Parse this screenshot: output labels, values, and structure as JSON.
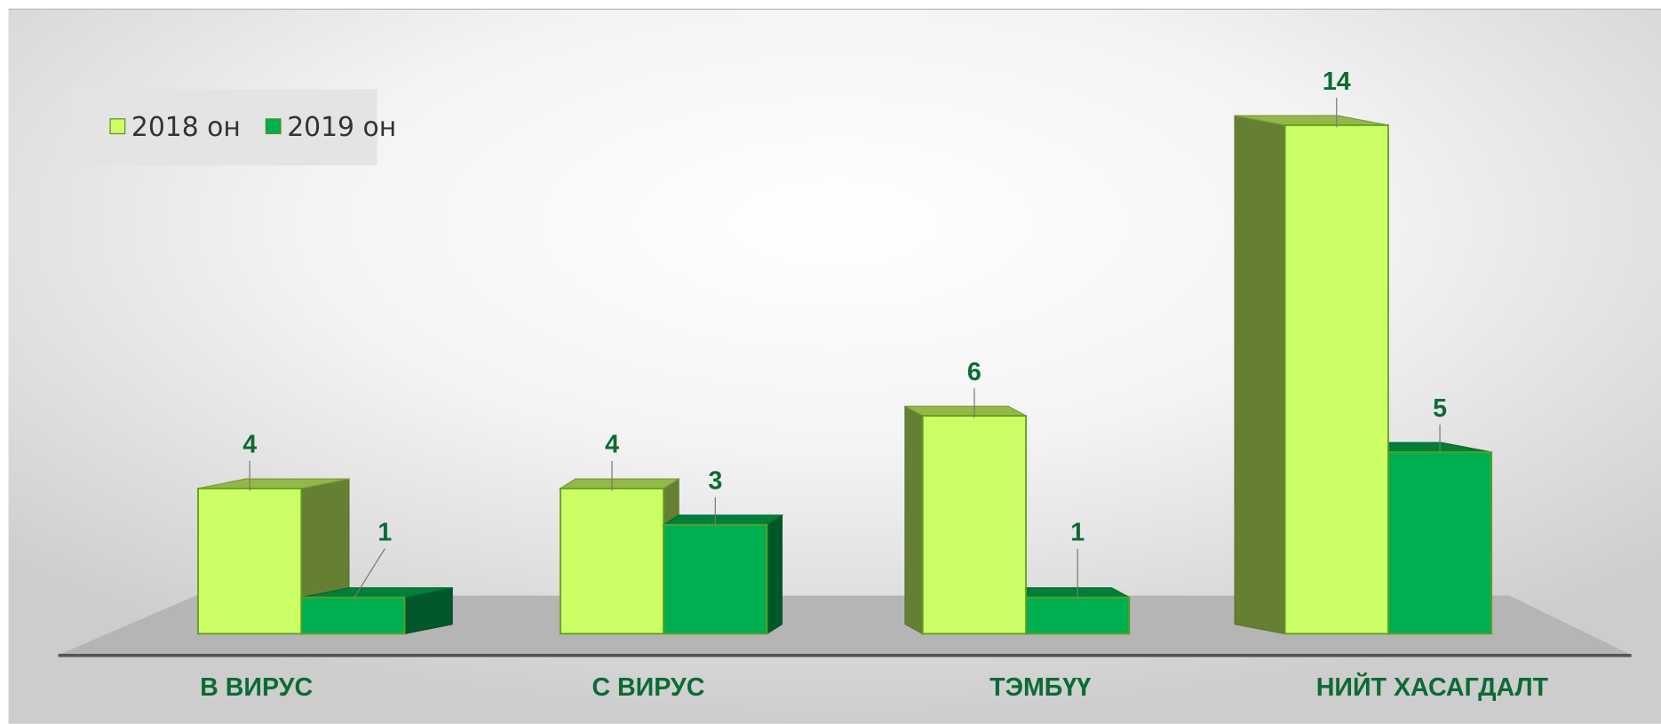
{
  "chart_data": {
    "type": "bar3d",
    "categories": [
      "В ВИРУС",
      "С ВИРУС",
      "ТЭМБҮҮ",
      "НИЙТ ХАСАГДАЛТ"
    ],
    "series": [
      {
        "name": "2018 он",
        "color": "#ccff66",
        "values": [
          4,
          4,
          6,
          14
        ]
      },
      {
        "name": "2019 он",
        "color": "#00b050",
        "values": [
          1,
          3,
          1,
          5
        ]
      }
    ],
    "legend": "top-left"
  }
}
